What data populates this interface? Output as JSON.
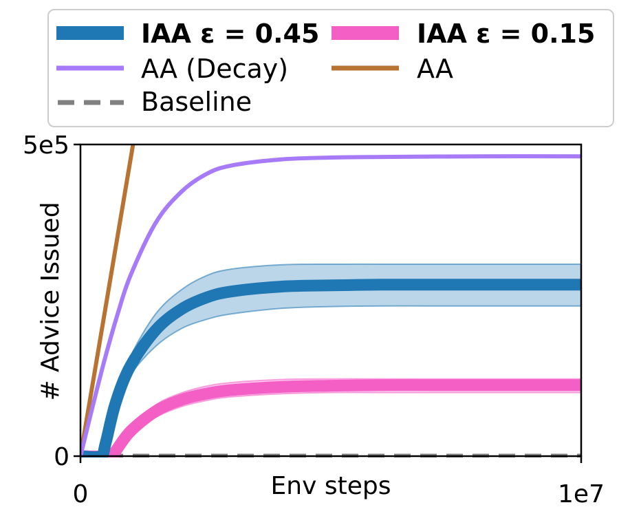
{
  "chart_data": {
    "type": "line",
    "title": "",
    "xlabel": "Env steps",
    "ylabel": "# Advice Issued",
    "xlim": [
      0,
      10000000
    ],
    "ylim": [
      0,
      500000
    ],
    "xticks": [
      {
        "value": 0,
        "label": "0"
      },
      {
        "value": 10000000,
        "label": "1e7"
      }
    ],
    "yticks": [
      {
        "value": 0,
        "label": "0"
      },
      {
        "value": 500000,
        "label": "5e5"
      }
    ],
    "grid": false,
    "legend_position": "top",
    "series": [
      {
        "name": "IAA ε = 0.45",
        "color": "#1f77b4",
        "style": "thick",
        "x": [
          0,
          400000,
          500000,
          700000,
          1000000,
          1500000,
          2000000,
          2500000,
          3000000,
          4000000,
          5000000,
          6000000,
          7000000,
          8000000,
          9000000,
          10000000
        ],
        "y": [
          0,
          0,
          20000,
          85000,
          145000,
          202000,
          235000,
          254000,
          264000,
          272000,
          274000,
          275000,
          275000,
          275000,
          275000,
          275000
        ],
        "band_upper": [
          0,
          0,
          22000,
          92000,
          160000,
          228000,
          266000,
          289000,
          300000,
          307000,
          308000,
          308000,
          308000,
          308000,
          308000,
          308000
        ],
        "band_lower": [
          0,
          0,
          18000,
          78000,
          130000,
          176000,
          204000,
          219000,
          228000,
          237000,
          240000,
          241000,
          241000,
          241000,
          241000,
          241000
        ]
      },
      {
        "name": "IAA ε = 0.15",
        "color": "#f45fc6",
        "style": "thick",
        "x": [
          0,
          600000,
          700000,
          1000000,
          1500000,
          2000000,
          2500000,
          3000000,
          4000000,
          5000000,
          6000000,
          7000000,
          8000000,
          9000000,
          10000000
        ],
        "y": [
          0,
          0,
          8000,
          40000,
          72000,
          90000,
          100000,
          106000,
          111000,
          113000,
          114000,
          114000,
          114000,
          114000,
          114000
        ],
        "band_upper": [
          0,
          0,
          10000,
          46000,
          82000,
          101000,
          112000,
          118000,
          123000,
          124000,
          124000,
          124000,
          124000,
          124000,
          124000
        ],
        "band_lower": [
          0,
          0,
          6000,
          34000,
          62000,
          79000,
          89000,
          95000,
          100000,
          102000,
          102000,
          102000,
          102000,
          102000,
          102000
        ]
      },
      {
        "name": "AA (Decay)",
        "color": "#a77bf7",
        "style": "medium",
        "x": [
          0,
          250000,
          500000,
          750000,
          1000000,
          1500000,
          2000000,
          2500000,
          3000000,
          4000000,
          5000000,
          6000000,
          8000000,
          10000000
        ],
        "y": [
          0,
          82000,
          160000,
          230000,
          290000,
          374000,
          423000,
          452000,
          466000,
          476000,
          479000,
          480000,
          481000,
          481000
        ]
      },
      {
        "name": "AA",
        "color": "#b87333",
        "style": "medium",
        "x": [
          0,
          1050000
        ],
        "y": [
          0,
          500000
        ]
      },
      {
        "name": "Baseline",
        "color": "#808080",
        "style": "dashed",
        "x": [
          0,
          10000000
        ],
        "y": [
          0,
          0
        ]
      }
    ],
    "legend": [
      {
        "label": "IAA ε = 0.45",
        "bold": true
      },
      {
        "label": "IAA ε = 0.15",
        "bold": true
      },
      {
        "label": "AA (Decay)",
        "bold": false
      },
      {
        "label": "AA",
        "bold": false
      },
      {
        "label": "Baseline",
        "bold": false
      }
    ]
  }
}
